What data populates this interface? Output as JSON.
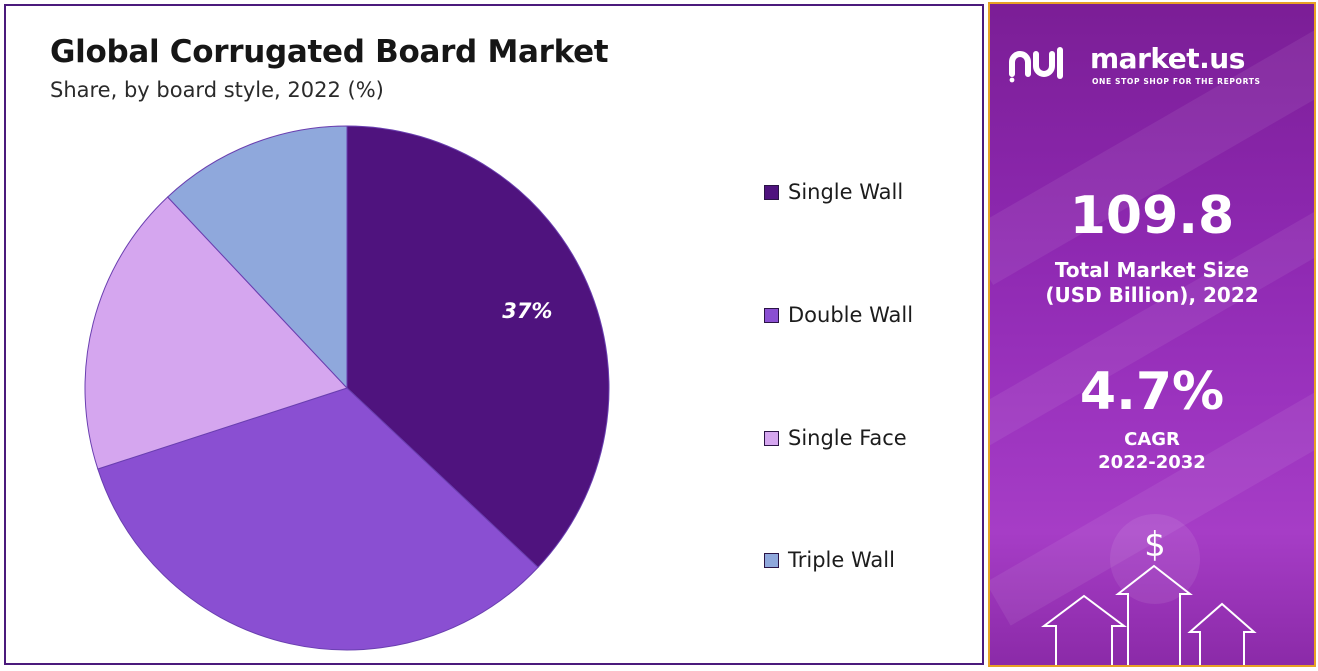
{
  "chart_data": {
    "type": "pie",
    "title": "Global Corrugated Board Market",
    "subtitle": "Share, by board style, 2022 (%)",
    "slices": [
      {
        "name": "Single Wall",
        "value": 37,
        "color": "#4f137e",
        "label": "37%"
      },
      {
        "name": "Double Wall",
        "value": 33,
        "color": "#8a4fd2",
        "label": ""
      },
      {
        "name": "Single Face",
        "value": 18,
        "color": "#d5a6ef",
        "label": ""
      },
      {
        "name": "Triple Wall",
        "value": 12,
        "color": "#8fa8dc",
        "label": ""
      }
    ],
    "legend_position": "right"
  },
  "side_panel": {
    "brand": "market.us",
    "tagline": "ONE STOP SHOP FOR THE REPORTS",
    "market_size_value": "109.8",
    "market_size_label_line1": "Total Market Size",
    "market_size_label_line2": "(USD Billion), 2022",
    "cagr_value": "4.7%",
    "cagr_label_line1": "CAGR",
    "cagr_label_line2": "2022-2032",
    "currency_symbol": "$"
  },
  "colors": {
    "panel_border": "#4b1a7c",
    "side_border": "#e7a126"
  }
}
